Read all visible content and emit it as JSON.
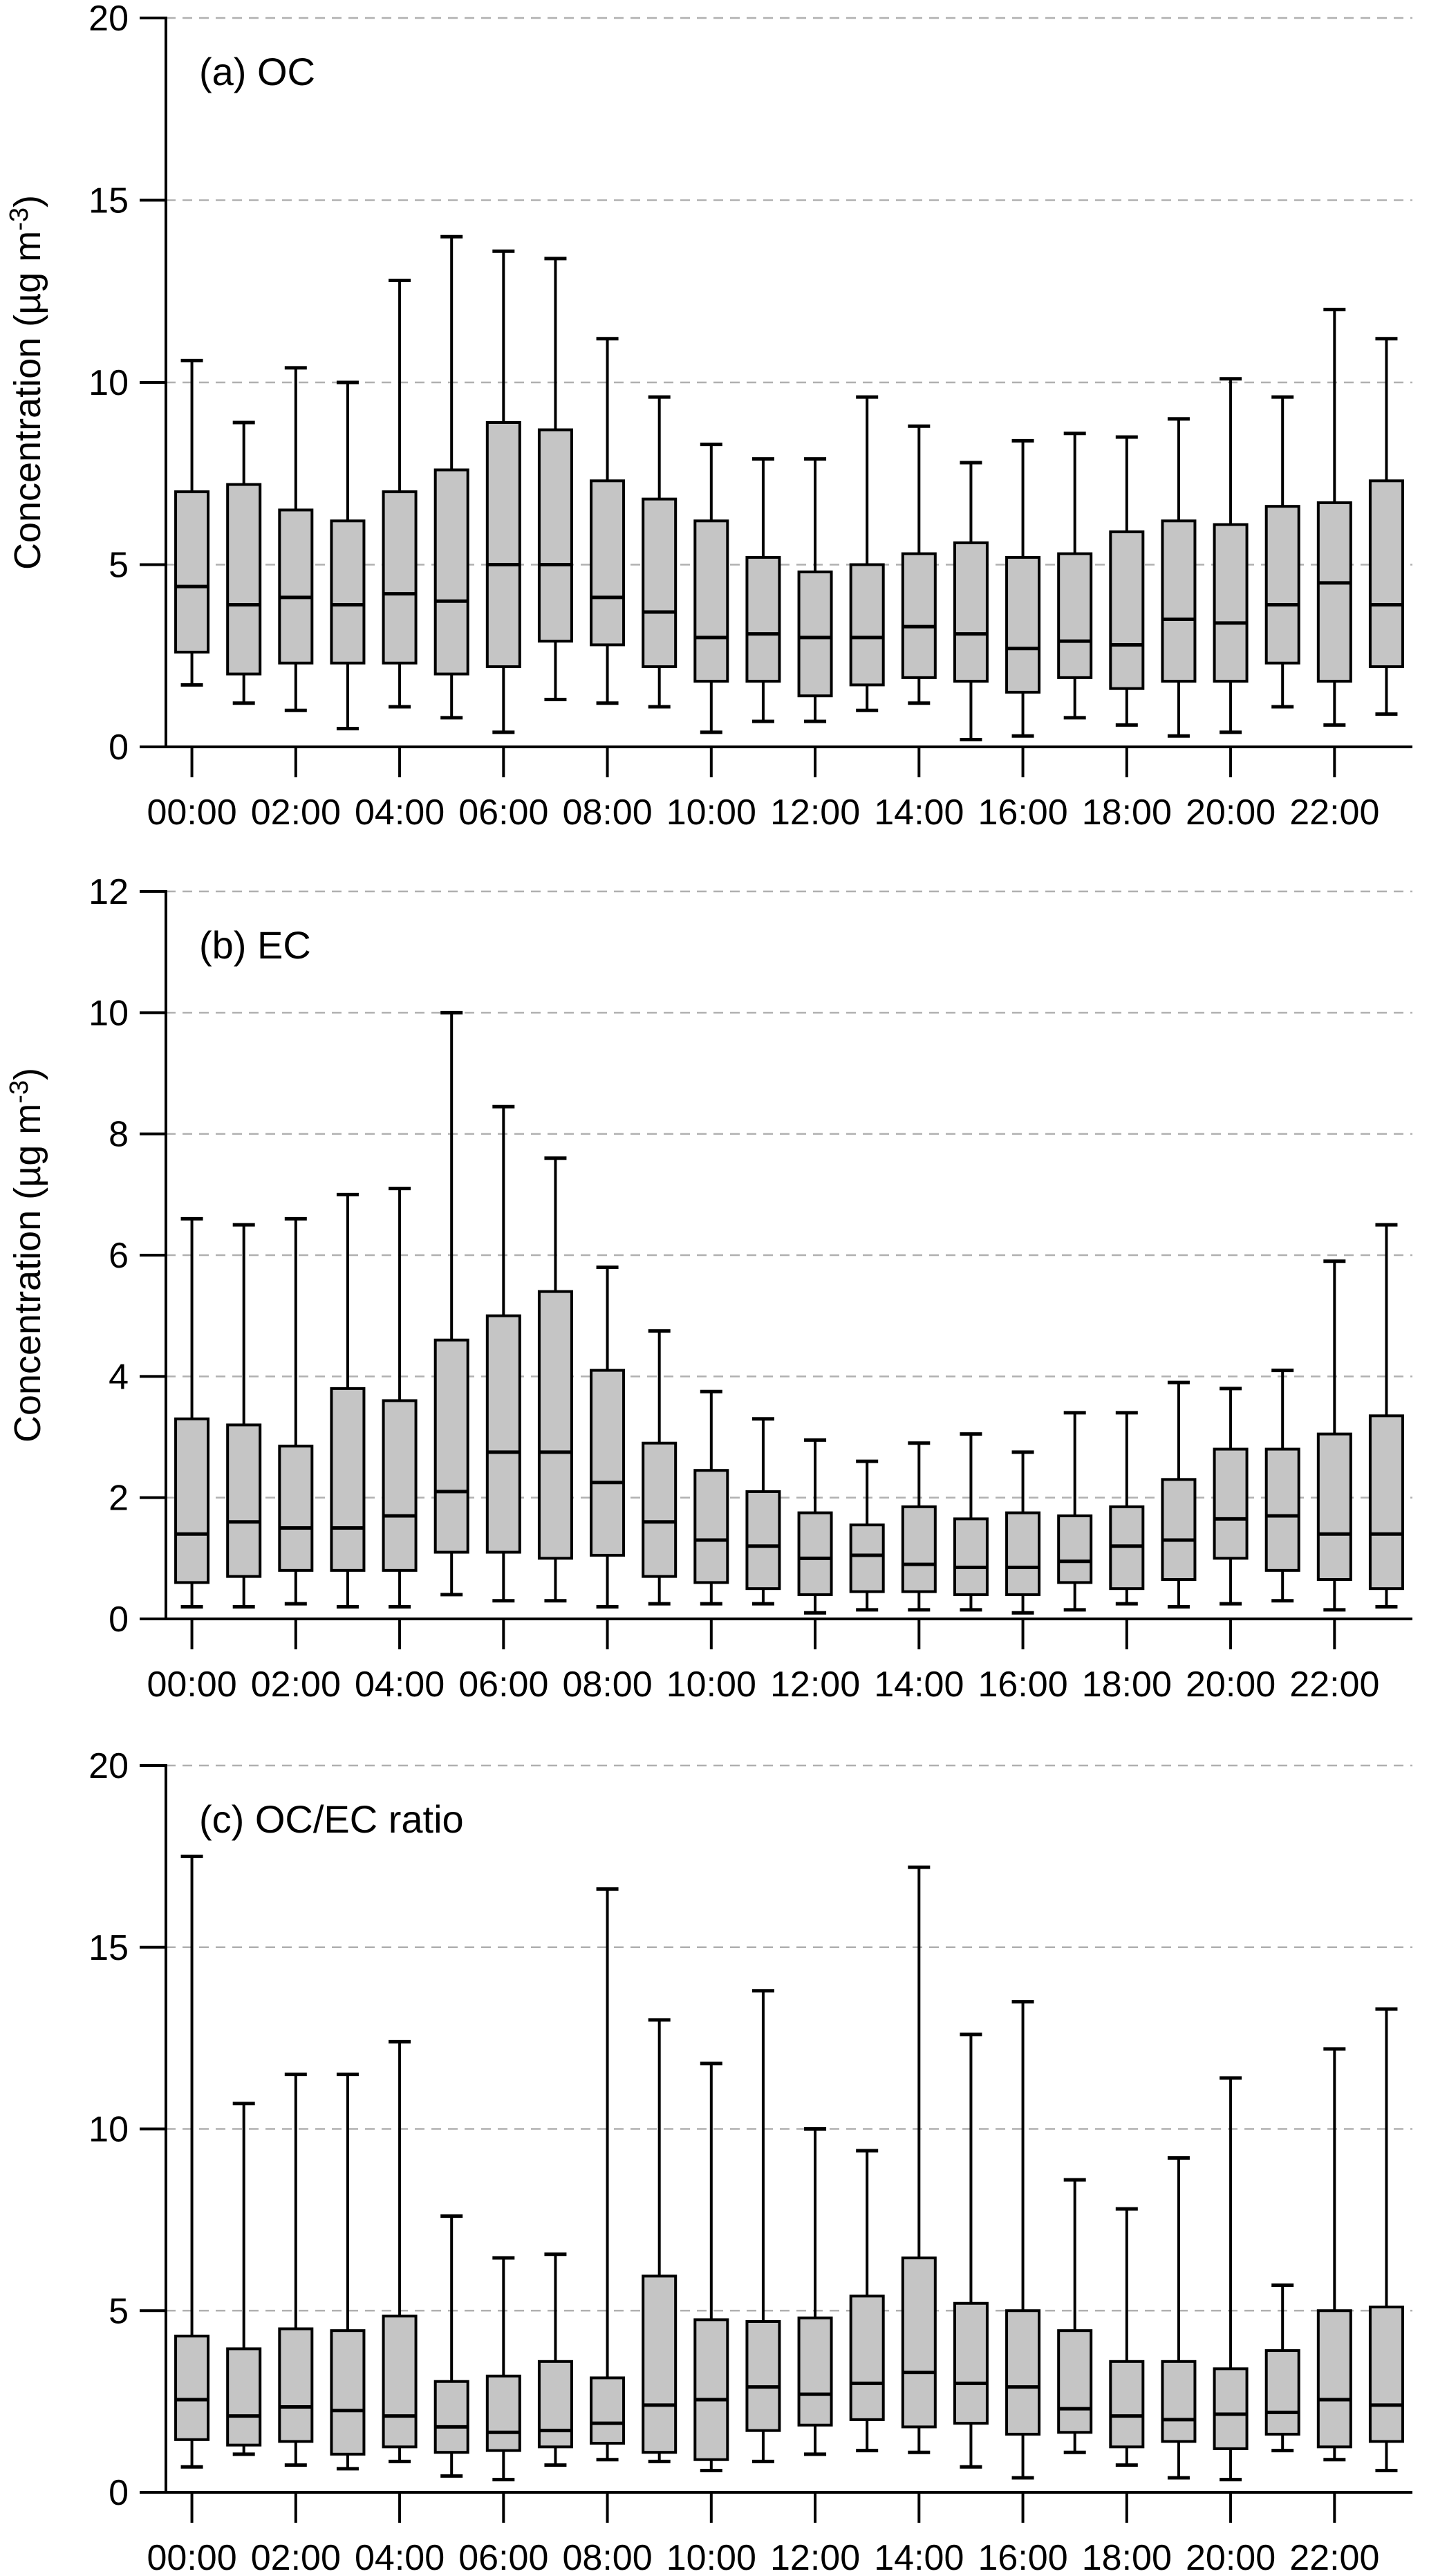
{
  "figure": {
    "background": "#ffffff",
    "box_fill": "#c5c5c5",
    "line_color": "#000000",
    "gridline_color": "#b0b0b0",
    "x_tick_labels": [
      "00:00",
      "02:00",
      "04:00",
      "06:00",
      "08:00",
      "10:00",
      "12:00",
      "14:00",
      "16:00",
      "18:00",
      "20:00",
      "22:00"
    ]
  },
  "chart_data": [
    {
      "type": "boxplot",
      "panel_label": "(a) OC",
      "ylabel": "Concentration (µg m-3)",
      "ylabel_prefix": "Concentration (µg m",
      "ylabel_sup": "-3",
      "ylabel_suffix": ")",
      "ylim": [
        0,
        20
      ],
      "yticks": [
        0,
        5,
        10,
        15,
        20
      ],
      "grid": true,
      "legend": false,
      "stats_order": [
        "whisker_low",
        "q1",
        "median",
        "q3",
        "whisker_high"
      ],
      "categories": [
        "00:00",
        "01:00",
        "02:00",
        "03:00",
        "04:00",
        "05:00",
        "06:00",
        "07:00",
        "08:00",
        "09:00",
        "10:00",
        "11:00",
        "12:00",
        "13:00",
        "14:00",
        "15:00",
        "16:00",
        "17:00",
        "18:00",
        "19:00",
        "20:00",
        "21:00",
        "22:00",
        "23:00"
      ],
      "boxes": [
        [
          1.7,
          2.6,
          4.4,
          7.0,
          10.6
        ],
        [
          1.2,
          2.0,
          3.9,
          7.2,
          8.9
        ],
        [
          1.0,
          2.3,
          4.1,
          6.5,
          10.4
        ],
        [
          0.5,
          2.3,
          3.9,
          6.2,
          10.0
        ],
        [
          1.1,
          2.3,
          4.2,
          7.0,
          12.8
        ],
        [
          0.8,
          2.0,
          4.0,
          7.6,
          14.0
        ],
        [
          0.4,
          2.2,
          5.0,
          8.9,
          13.6
        ],
        [
          1.3,
          2.9,
          5.0,
          8.7,
          13.4
        ],
        [
          1.2,
          2.8,
          4.1,
          7.3,
          11.2
        ],
        [
          1.1,
          2.2,
          3.7,
          6.8,
          9.6
        ],
        [
          0.4,
          1.8,
          3.0,
          6.2,
          8.3
        ],
        [
          0.7,
          1.8,
          3.1,
          5.2,
          7.9
        ],
        [
          0.7,
          1.4,
          3.0,
          4.8,
          7.9
        ],
        [
          1.0,
          1.7,
          3.0,
          5.0,
          9.6
        ],
        [
          1.2,
          1.9,
          3.3,
          5.3,
          8.8
        ],
        [
          0.2,
          1.8,
          3.1,
          5.6,
          7.8
        ],
        [
          0.3,
          1.5,
          2.7,
          5.2,
          8.4
        ],
        [
          0.8,
          1.9,
          2.9,
          5.3,
          8.6
        ],
        [
          0.6,
          1.6,
          2.8,
          5.9,
          8.5
        ],
        [
          0.3,
          1.8,
          3.5,
          6.2,
          9.0
        ],
        [
          0.4,
          1.8,
          3.4,
          6.1,
          10.1
        ],
        [
          1.1,
          2.3,
          3.9,
          6.6,
          9.6
        ],
        [
          0.6,
          1.8,
          4.5,
          6.7,
          12.0
        ],
        [
          0.9,
          2.2,
          3.9,
          7.3,
          11.2
        ]
      ]
    },
    {
      "type": "boxplot",
      "panel_label": "(b) EC",
      "ylabel": "Concentration (µg m-3)",
      "ylabel_prefix": "Concentration (µg m",
      "ylabel_sup": "-3",
      "ylabel_suffix": ")",
      "ylim": [
        0,
        12
      ],
      "yticks": [
        0,
        2,
        4,
        6,
        8,
        10,
        12
      ],
      "grid": true,
      "legend": false,
      "stats_order": [
        "whisker_low",
        "q1",
        "median",
        "q3",
        "whisker_high"
      ],
      "categories": [
        "00:00",
        "01:00",
        "02:00",
        "03:00",
        "04:00",
        "05:00",
        "06:00",
        "07:00",
        "08:00",
        "09:00",
        "10:00",
        "11:00",
        "12:00",
        "13:00",
        "14:00",
        "15:00",
        "16:00",
        "17:00",
        "18:00",
        "19:00",
        "20:00",
        "21:00",
        "22:00",
        "23:00"
      ],
      "boxes": [
        [
          0.2,
          0.6,
          1.4,
          3.3,
          6.6
        ],
        [
          0.2,
          0.7,
          1.6,
          3.2,
          6.5
        ],
        [
          0.25,
          0.8,
          1.5,
          2.85,
          6.6
        ],
        [
          0.2,
          0.8,
          1.5,
          3.8,
          7.0
        ],
        [
          0.2,
          0.8,
          1.7,
          3.6,
          7.1
        ],
        [
          0.4,
          1.1,
          2.1,
          4.6,
          10.0
        ],
        [
          0.3,
          1.1,
          2.75,
          5.0,
          8.45
        ],
        [
          0.3,
          1.0,
          2.75,
          5.4,
          7.6
        ],
        [
          0.2,
          1.05,
          2.25,
          4.1,
          5.8
        ],
        [
          0.25,
          0.7,
          1.6,
          2.9,
          4.75
        ],
        [
          0.25,
          0.6,
          1.3,
          2.45,
          3.75
        ],
        [
          0.25,
          0.5,
          1.2,
          2.1,
          3.3
        ],
        [
          0.1,
          0.4,
          1.0,
          1.75,
          2.95
        ],
        [
          0.15,
          0.45,
          1.05,
          1.55,
          2.6
        ],
        [
          0.15,
          0.45,
          0.9,
          1.85,
          2.9
        ],
        [
          0.15,
          0.4,
          0.85,
          1.65,
          3.05
        ],
        [
          0.1,
          0.4,
          0.85,
          1.75,
          2.75
        ],
        [
          0.15,
          0.6,
          0.95,
          1.7,
          3.4
        ],
        [
          0.25,
          0.5,
          1.2,
          1.85,
          3.4
        ],
        [
          0.2,
          0.65,
          1.3,
          2.3,
          3.9
        ],
        [
          0.25,
          1.0,
          1.65,
          2.8,
          3.8
        ],
        [
          0.3,
          0.8,
          1.7,
          2.8,
          4.1
        ],
        [
          0.15,
          0.65,
          1.4,
          3.05,
          5.9
        ],
        [
          0.2,
          0.5,
          1.4,
          3.35,
          6.5
        ]
      ]
    },
    {
      "type": "boxplot",
      "panel_label": "(c) OC/EC ratio",
      "ylim": [
        0,
        20
      ],
      "yticks": [
        0,
        5,
        10,
        15,
        20
      ],
      "grid": true,
      "legend": false,
      "stats_order": [
        "whisker_low",
        "q1",
        "median",
        "q3",
        "whisker_high"
      ],
      "categories": [
        "00:00",
        "01:00",
        "02:00",
        "03:00",
        "04:00",
        "05:00",
        "06:00",
        "07:00",
        "08:00",
        "09:00",
        "10:00",
        "11:00",
        "12:00",
        "13:00",
        "14:00",
        "15:00",
        "16:00",
        "17:00",
        "18:00",
        "19:00",
        "20:00",
        "21:00",
        "22:00",
        "23:00"
      ],
      "boxes": [
        [
          0.7,
          1.45,
          2.55,
          4.3,
          17.5
        ],
        [
          1.05,
          1.3,
          2.1,
          3.95,
          10.7
        ],
        [
          0.75,
          1.4,
          2.35,
          4.5,
          11.5
        ],
        [
          0.65,
          1.05,
          2.25,
          4.45,
          11.5
        ],
        [
          0.85,
          1.25,
          2.1,
          4.85,
          12.4
        ],
        [
          0.45,
          1.1,
          1.8,
          3.05,
          7.6
        ],
        [
          0.35,
          1.15,
          1.65,
          3.2,
          6.45
        ],
        [
          0.75,
          1.25,
          1.7,
          3.6,
          6.55
        ],
        [
          0.9,
          1.35,
          1.9,
          3.15,
          16.6
        ],
        [
          0.85,
          1.1,
          2.4,
          5.95,
          13.0
        ],
        [
          0.6,
          0.9,
          2.55,
          4.75,
          11.8
        ],
        [
          0.85,
          1.7,
          2.9,
          4.7,
          13.8
        ],
        [
          1.05,
          1.85,
          2.7,
          4.8,
          10.0
        ],
        [
          1.15,
          2.0,
          3.0,
          5.4,
          9.4
        ],
        [
          1.1,
          1.8,
          3.3,
          6.45,
          17.2
        ],
        [
          0.7,
          1.9,
          3.0,
          5.2,
          12.6
        ],
        [
          0.4,
          1.6,
          2.9,
          5.0,
          13.5
        ],
        [
          1.1,
          1.65,
          2.3,
          4.45,
          8.6
        ],
        [
          0.75,
          1.25,
          2.1,
          3.6,
          7.8
        ],
        [
          0.4,
          1.4,
          2.0,
          3.6,
          9.2
        ],
        [
          0.35,
          1.2,
          2.15,
          3.4,
          11.4
        ],
        [
          1.15,
          1.6,
          2.2,
          3.9,
          5.7
        ],
        [
          0.9,
          1.25,
          2.55,
          5.0,
          12.2
        ],
        [
          0.6,
          1.4,
          2.4,
          5.1,
          13.3
        ]
      ]
    }
  ]
}
